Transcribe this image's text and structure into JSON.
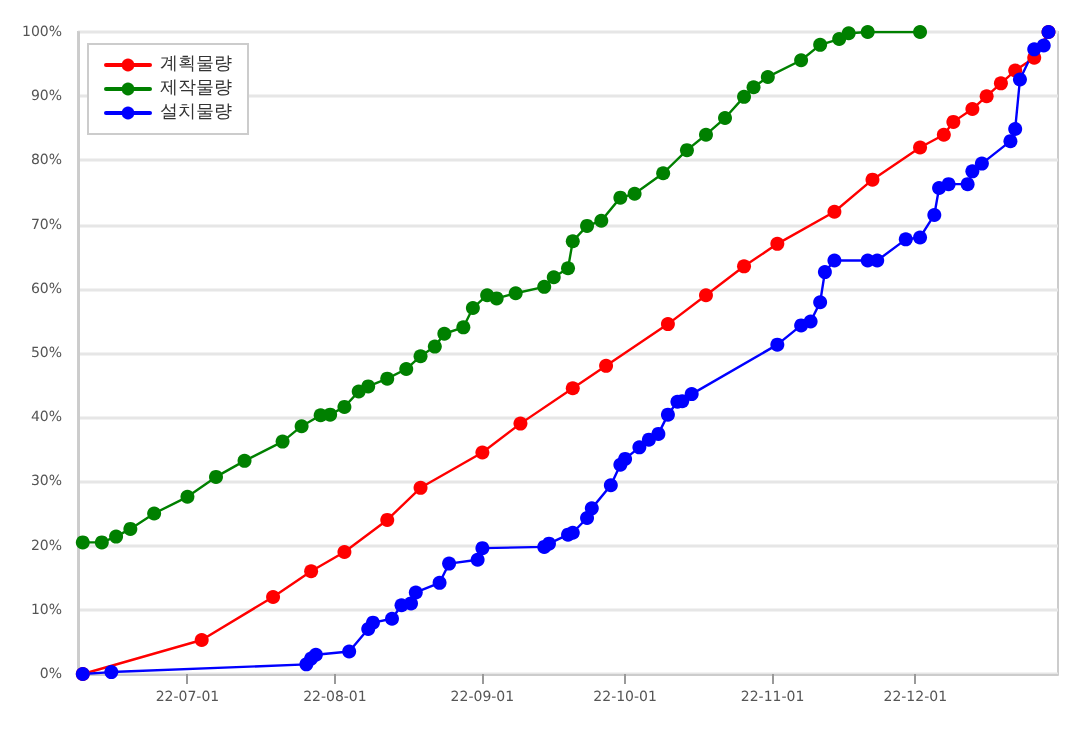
{
  "chart_data": {
    "type": "line",
    "marker": "circle",
    "line_style": "solid",
    "grid": "y",
    "legend": "top left",
    "xlim": [
      "--06-08",
      "--12-31"
    ],
    "xticks": [
      {
        "value": "--07-01",
        "label": "22-07-01"
      },
      {
        "value": "--08-01",
        "label": "22-08-01"
      },
      {
        "value": "--09-01",
        "label": "22-09-01"
      },
      {
        "value": "--10-01",
        "label": "22-10-01"
      },
      {
        "value": "--11-01",
        "label": "22-11-01"
      },
      {
        "value": "--12-01",
        "label": "22-12-01"
      }
    ],
    "ylim": [
      0,
      100
    ],
    "yticks": [
      {
        "value": 0,
        "label": "0%"
      },
      {
        "value": 10,
        "label": "10%"
      },
      {
        "value": 20,
        "label": "20%"
      },
      {
        "value": 30,
        "label": "30%"
      },
      {
        "value": 40,
        "label": "40%"
      },
      {
        "value": 50,
        "label": "50%"
      },
      {
        "value": 60,
        "label": "60%"
      },
      {
        "value": 70,
        "label": "70%"
      },
      {
        "value": 80,
        "label": "80%"
      },
      {
        "value": 90,
        "label": "90%"
      },
      {
        "value": 100,
        "label": "100%"
      }
    ],
    "series": [
      {
        "name": "계획물량",
        "color": "#ff0000",
        "x": [
          "--06-09",
          "--07-04",
          "--07-19",
          "--07-27",
          "--08-03",
          "--08-12",
          "--08-19",
          "--09-01",
          "--09-09",
          "--09-20",
          "--09-27",
          "--10-10",
          "--10-18",
          "--10-26",
          "--11-02",
          "--11-14",
          "--11-22",
          "--12-02",
          "--12-07",
          "--12-09",
          "--12-13",
          "--12-16",
          "--12-19",
          "--12-22",
          "--12-26",
          "--12-29"
        ],
        "values": [
          0,
          5.3,
          12,
          16,
          19,
          24,
          29,
          34.5,
          39,
          44.5,
          48,
          54.5,
          59,
          63.5,
          67,
          72,
          77,
          82,
          84,
          86,
          88,
          90,
          92,
          94,
          96,
          100
        ]
      },
      {
        "name": "제작물량",
        "color": "#008000",
        "x": [
          "--06-09",
          "--06-13",
          "--06-16",
          "--06-19",
          "--06-24",
          "--07-01",
          "--07-07",
          "--07-13",
          "--07-21",
          "--07-25",
          "--07-29",
          "--07-31",
          "--08-03",
          "--08-06",
          "--08-08",
          "--08-12",
          "--08-16",
          "--08-19",
          "--08-22",
          "--08-24",
          "--08-28",
          "--08-30",
          "--09-02",
          "--09-04",
          "--09-08",
          "--09-14",
          "--09-16",
          "--09-19",
          "--09-20",
          "--09-23",
          "--09-26",
          "--09-30",
          "--10-03",
          "--10-09",
          "--10-14",
          "--10-18",
          "--10-22",
          "--10-26",
          "--10-28",
          "--10-31",
          "--11-07",
          "--11-11",
          "--11-15",
          "--11-17",
          "--11-21",
          "--12-02"
        ],
        "values": [
          20.5,
          20.5,
          21.4,
          22.6,
          25,
          27.6,
          30.7,
          33.2,
          36.2,
          38.6,
          40.3,
          40.4,
          41.6,
          44,
          44.8,
          46,
          47.5,
          49.5,
          51,
          53,
          54,
          57,
          59,
          58.5,
          59.3,
          60.3,
          61.8,
          63.2,
          67.4,
          69.8,
          70.6,
          74.2,
          74.8,
          78,
          81.6,
          84,
          86.6,
          89.9,
          91.4,
          93,
          95.6,
          98,
          98.9,
          99.8,
          100,
          100
        ]
      },
      {
        "name": "설치물량",
        "color": "#0000ff",
        "x": [
          "--06-09",
          "--06-15",
          "--07-26",
          "--07-27",
          "--07-28",
          "--08-04",
          "--08-08",
          "--08-09",
          "--08-13",
          "--08-15",
          "--08-17",
          "--08-18",
          "--08-23",
          "--08-25",
          "--08-31",
          "--09-01",
          "--09-14",
          "--09-15",
          "--09-19",
          "--09-20",
          "--09-23",
          "--09-24",
          "--09-28",
          "--09-30",
          "--10-01",
          "--10-04",
          "--10-06",
          "--10-08",
          "--10-10",
          "--10-12",
          "--10-13",
          "--10-15",
          "--11-02",
          "--11-07",
          "--11-09",
          "--11-11",
          "--11-12",
          "--11-14",
          "--11-21",
          "--11-23",
          "--11-29",
          "--12-02",
          "--12-05",
          "--12-06",
          "--12-08",
          "--12-12",
          "--12-13",
          "--12-15",
          "--12-21",
          "--12-22",
          "--12-23",
          "--12-26",
          "--12-28",
          "--12-29"
        ],
        "values": [
          0,
          0.3,
          1.5,
          2.4,
          3,
          3.5,
          7,
          8,
          8.6,
          10.7,
          11,
          12.7,
          14.2,
          17.2,
          17.8,
          19.6,
          19.8,
          20.3,
          21.7,
          22,
          24.3,
          25.8,
          29.4,
          32.6,
          33.5,
          35.3,
          36.5,
          37.4,
          40.4,
          42.4,
          42.5,
          43.6,
          51.3,
          54.3,
          54.9,
          57.9,
          62.6,
          64.4,
          64.4,
          64.4,
          67.7,
          68,
          71.5,
          75.7,
          76.3,
          76.3,
          78.3,
          79.5,
          83,
          84.9,
          92.6,
          97.3,
          97.9,
          100
        ]
      }
    ]
  }
}
